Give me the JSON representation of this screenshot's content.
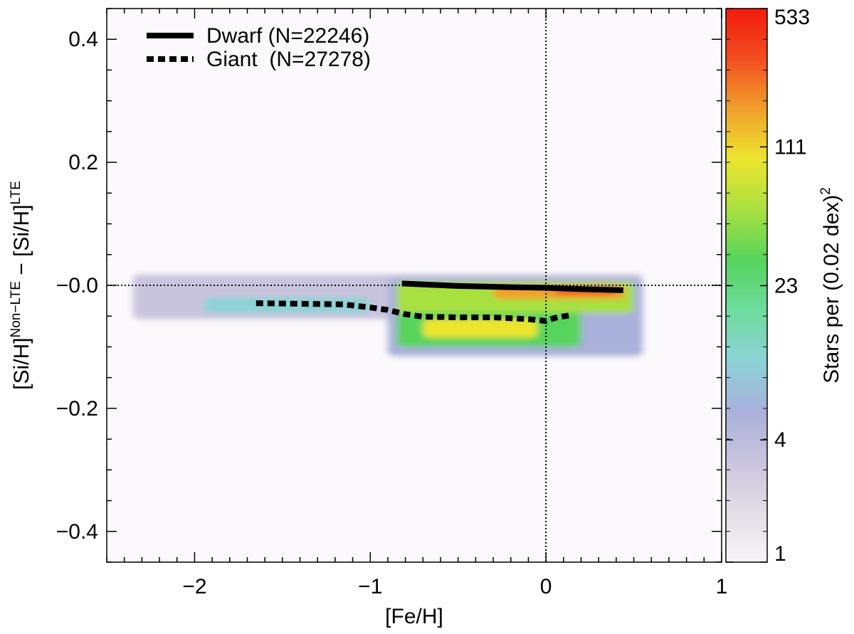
{
  "chart_data": {
    "type": "heatmap",
    "xlabel": "[Fe/H]",
    "ylabel": {
      "part1": "[Si/H]",
      "sup1": "Non−LTE",
      "part2": " − [Si/H]",
      "sup2": "LTE"
    },
    "xlim": [
      -2.5,
      1.0
    ],
    "ylim": [
      -0.45,
      0.45
    ],
    "x_ticks": [
      {
        "value": -2,
        "label": "−2"
      },
      {
        "value": -1,
        "label": "−1"
      },
      {
        "value": 0,
        "label": "0"
      },
      {
        "value": 1,
        "label": "1"
      }
    ],
    "y_ticks": [
      {
        "value": 0.4,
        "label": "0.4"
      },
      {
        "value": 0.2,
        "label": "0.2"
      },
      {
        "value": 0.0,
        "label": "−0.0"
      },
      {
        "value": -0.2,
        "label": "−0.2"
      },
      {
        "value": -0.4,
        "label": "−0.4"
      }
    ],
    "reference_lines": {
      "x": 0,
      "y": 0,
      "style": "dotted"
    },
    "series": [
      {
        "name": "Dwarf",
        "legend_label": "Dwarf (N=22246)",
        "style": "solid",
        "x": [
          -0.82,
          -0.5,
          -0.2,
          0.0,
          0.2,
          0.44
        ],
        "y": [
          0.003,
          -0.001,
          -0.003,
          -0.004,
          -0.006,
          -0.008
        ]
      },
      {
        "name": "Giant",
        "legend_label": "Giant  (N=27278)",
        "style": "dotted",
        "x": [
          -1.65,
          -1.4,
          -1.15,
          -1.0,
          -0.9,
          -0.8,
          -0.7,
          -0.5,
          -0.3,
          -0.1,
          0.0,
          0.05,
          0.15
        ],
        "y": [
          -0.029,
          -0.03,
          -0.031,
          -0.036,
          -0.04,
          -0.047,
          -0.051,
          -0.052,
          -0.052,
          -0.055,
          -0.058,
          -0.053,
          -0.048
        ]
      }
    ],
    "density_regions": [
      {
        "x0": -2.35,
        "x1": 0.55,
        "y0": -0.055,
        "y1": 0.018,
        "level": 0.22
      },
      {
        "x0": -0.9,
        "x1": 0.55,
        "y0": -0.115,
        "y1": 0.012,
        "level": 0.3
      },
      {
        "x0": -1.95,
        "x1": -1.0,
        "y0": -0.045,
        "y1": -0.02,
        "level": 0.4
      },
      {
        "x0": -0.85,
        "x1": 0.2,
        "y0": -0.1,
        "y1": -0.045,
        "level": 0.55
      },
      {
        "x0": -0.85,
        "x1": 0.5,
        "y0": -0.045,
        "y1": 0.006,
        "level": 0.62
      },
      {
        "x0": -0.7,
        "x1": -0.05,
        "y0": -0.085,
        "y1": -0.055,
        "level": 0.72
      },
      {
        "x0": -0.3,
        "x1": 0.45,
        "y0": -0.022,
        "y1": 0.0,
        "level": 0.82
      },
      {
        "x0": 0.05,
        "x1": 0.4,
        "y0": -0.015,
        "y1": -0.003,
        "level": 0.93
      }
    ],
    "colorbar": {
      "label": "Stars per (0.02 dex)",
      "label_sup": "2",
      "tick_labels": [
        "533",
        "111",
        "23",
        "4",
        "1"
      ],
      "colors": [
        "#f7f5f7",
        "#e2dde6",
        "#c9c4de",
        "#a9b0da",
        "#8cd2d6",
        "#6edc9e",
        "#56d45c",
        "#a8e040",
        "#ece52e",
        "#f0a02c",
        "#f24e20",
        "#f21a0c"
      ]
    }
  }
}
